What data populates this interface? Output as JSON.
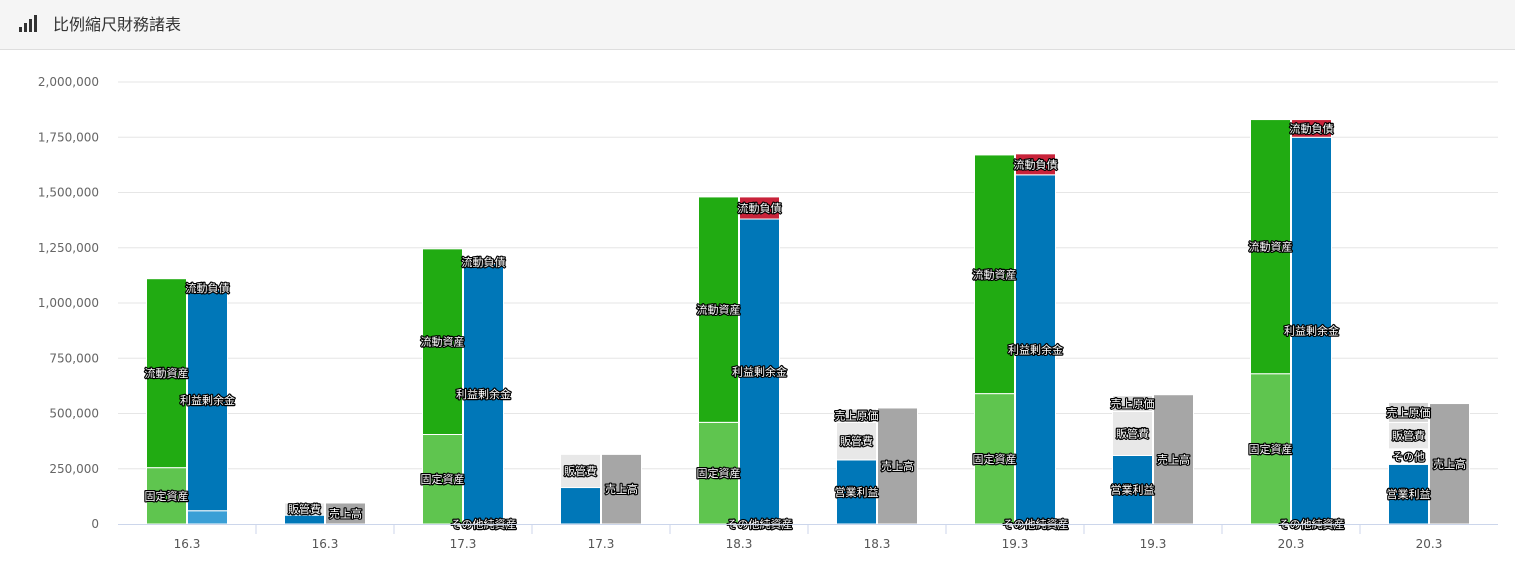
{
  "header": {
    "title": "比例縮尺財務諸表",
    "icon": "bar-chart-icon"
  },
  "chart_data": {
    "type": "bar",
    "stacked": true,
    "title": "比例縮尺財務諸表",
    "xlabel": "",
    "ylabel": "",
    "ylim": [
      0,
      2000000
    ],
    "yticks": [
      0,
      250000,
      500000,
      750000,
      1000000,
      1250000,
      1500000,
      1750000,
      2000000
    ],
    "ytick_labels": [
      "0",
      "250,000",
      "500,000",
      "750,000",
      "1,000,000",
      "1,250,000",
      "1,500,000",
      "1,750,000",
      "2,000,000"
    ],
    "grid": true,
    "legend": "none",
    "categories": [
      "16.3",
      "16.3",
      "17.3",
      "17.3",
      "18.3",
      "18.3",
      "19.3",
      "19.3",
      "20.3",
      "20.3"
    ],
    "groups": [
      {
        "category": "16.3",
        "bars": [
          {
            "segments": [
              {
                "name": "固定資産",
                "value": 255000,
                "color": "#5fc54f",
                "label": "固定資産"
              },
              {
                "name": "流動資産",
                "value": 855000,
                "color": "#21ab12",
                "label": "流動資産"
              }
            ]
          },
          {
            "segments": [
              {
                "name": "その他純資産",
                "value": 60000,
                "color": "#3a9fd6",
                "label": ""
              },
              {
                "name": "利益剰余金",
                "value": 1000000,
                "color": "#0077b8",
                "label": "利益剰余金"
              },
              {
                "name": "流動負債",
                "value": 8000,
                "color": "#c8233a",
                "label": "流動負債"
              }
            ]
          }
        ]
      },
      {
        "category": "16.3",
        "bars": [
          {
            "segments": [
              {
                "name": "営業利益",
                "value": 40000,
                "color": "#0077b8",
                "label": ""
              },
              {
                "name": "販管費",
                "value": 55000,
                "color": "#e8e8e8",
                "label": "販管費"
              }
            ]
          },
          {
            "segments": [
              {
                "name": "売上高",
                "value": 95000,
                "color": "#a6a6a6",
                "label": "売上高"
              }
            ]
          }
        ]
      },
      {
        "category": "17.3",
        "bars": [
          {
            "segments": [
              {
                "name": "固定資産",
                "value": 405000,
                "color": "#5fc54f",
                "label": "固定資産"
              },
              {
                "name": "流動資産",
                "value": 840000,
                "color": "#21ab12",
                "label": "流動資産"
              }
            ]
          },
          {
            "segments": [
              {
                "name": "その他純資産",
                "value": 0,
                "color": "#3a9fd6",
                "label": "その他純資産"
              },
              {
                "name": "利益剰余金",
                "value": 1178000,
                "color": "#0077b8",
                "label": "利益剰余金"
              },
              {
                "name": "流動負債",
                "value": 8000,
                "color": "#c8233a",
                "label": "流動負債"
              }
            ]
          }
        ]
      },
      {
        "category": "17.3",
        "bars": [
          {
            "segments": [
              {
                "name": "営業利益",
                "value": 165000,
                "color": "#0077b8",
                "label": ""
              },
              {
                "name": "販管費",
                "value": 150000,
                "color": "#e8e8e8",
                "label": "販管費"
              }
            ]
          },
          {
            "segments": [
              {
                "name": "売上高",
                "value": 315000,
                "color": "#a6a6a6",
                "label": "売上高"
              }
            ]
          }
        ]
      },
      {
        "category": "18.3",
        "bars": [
          {
            "segments": [
              {
                "name": "固定資産",
                "value": 460000,
                "color": "#5fc54f",
                "label": "固定資産"
              },
              {
                "name": "流動資産",
                "value": 1020000,
                "color": "#21ab12",
                "label": "流動資産"
              }
            ]
          },
          {
            "segments": [
              {
                "name": "その他純資産",
                "value": 0,
                "color": "#3a9fd6",
                "label": "その他純資産"
              },
              {
                "name": "利益剰余金",
                "value": 1380000,
                "color": "#0077b8",
                "label": "利益剰余金"
              },
              {
                "name": "流動負債",
                "value": 100000,
                "color": "#c8233a",
                "label": "流動負債"
              }
            ]
          }
        ]
      },
      {
        "category": "18.3",
        "bars": [
          {
            "segments": [
              {
                "name": "営業利益",
                "value": 290000,
                "color": "#0077b8",
                "label": "営業利益"
              },
              {
                "name": "販管費",
                "value": 170000,
                "color": "#e8e8e8",
                "label": "販管費"
              },
              {
                "name": "売上原価",
                "value": 60000,
                "color": "#d4d4d4",
                "label": "売上原価"
              }
            ]
          },
          {
            "segments": [
              {
                "name": "売上高",
                "value": 525000,
                "color": "#a6a6a6",
                "label": "売上高"
              }
            ]
          }
        ]
      },
      {
        "category": "19.3",
        "bars": [
          {
            "segments": [
              {
                "name": "固定資産",
                "value": 590000,
                "color": "#5fc54f",
                "label": "固定資産"
              },
              {
                "name": "流動資産",
                "value": 1080000,
                "color": "#21ab12",
                "label": "流動資産"
              }
            ]
          },
          {
            "segments": [
              {
                "name": "その他純資産",
                "value": 0,
                "color": "#3a9fd6",
                "label": "その他純資産"
              },
              {
                "name": "利益剰余金",
                "value": 1580000,
                "color": "#0077b8",
                "label": "利益剰余金"
              },
              {
                "name": "流動負債",
                "value": 95000,
                "color": "#c8233a",
                "label": "流動負債"
              }
            ]
          }
        ]
      },
      {
        "category": "19.3",
        "bars": [
          {
            "segments": [
              {
                "name": "営業利益",
                "value": 310000,
                "color": "#0077b8",
                "label": "営業利益"
              },
              {
                "name": "販管費",
                "value": 200000,
                "color": "#e8e8e8",
                "label": "販管費"
              },
              {
                "name": "売上原価",
                "value": 70000,
                "color": "#d4d4d4",
                "label": "売上原価"
              }
            ]
          },
          {
            "segments": [
              {
                "name": "売上高",
                "value": 585000,
                "color": "#a6a6a6",
                "label": "売上高"
              }
            ]
          }
        ]
      },
      {
        "category": "20.3",
        "bars": [
          {
            "segments": [
              {
                "name": "固定資産",
                "value": 680000,
                "color": "#5fc54f",
                "label": "固定資産"
              },
              {
                "name": "流動資産",
                "value": 1150000,
                "color": "#21ab12",
                "label": "流動資産"
              }
            ]
          },
          {
            "segments": [
              {
                "name": "その他純資産",
                "value": 0,
                "color": "#3a9fd6",
                "label": "その他純資産"
              },
              {
                "name": "利益剰余金",
                "value": 1750000,
                "color": "#0077b8",
                "label": "利益剰余金"
              },
              {
                "name": "流動負債",
                "value": 80000,
                "color": "#c8233a",
                "label": "流動負債"
              }
            ]
          }
        ]
      },
      {
        "category": "20.3",
        "bars": [
          {
            "segments": [
              {
                "name": "営業利益",
                "value": 270000,
                "color": "#0077b8",
                "label": "営業利益"
              },
              {
                "name": "その他",
                "value": 70000,
                "color": "#ffffff",
                "label": "その他"
              },
              {
                "name": "販管費",
                "value": 120000,
                "color": "#e8e8e8",
                "label": "販管費"
              },
              {
                "name": "売上原価",
                "value": 90000,
                "color": "#d4d4d4",
                "label": "売上原価"
              }
            ]
          },
          {
            "segments": [
              {
                "name": "売上高",
                "value": 545000,
                "color": "#a6a6a6",
                "label": "売上高"
              }
            ]
          }
        ]
      }
    ]
  }
}
